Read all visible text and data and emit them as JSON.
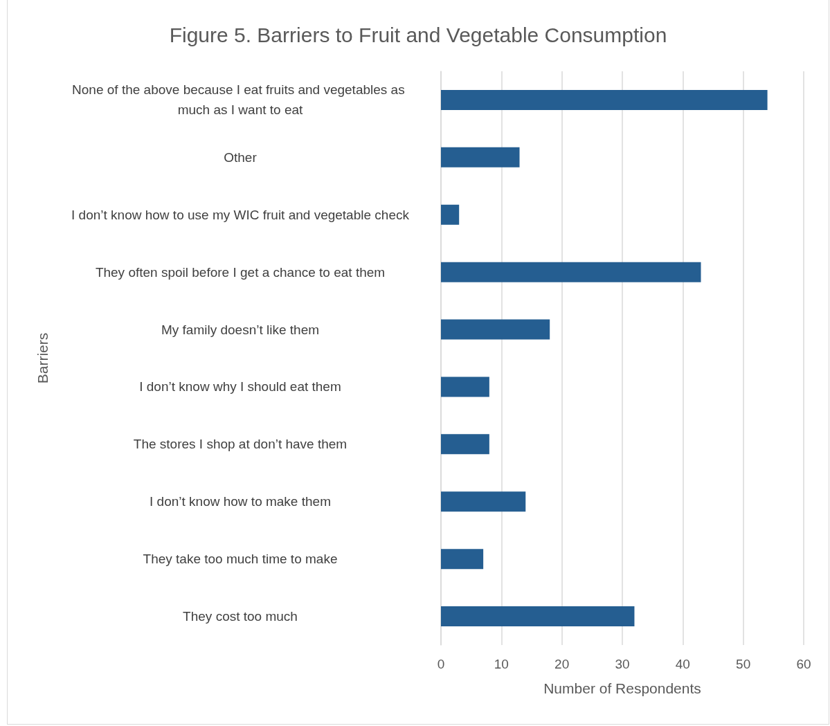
{
  "chart_data": {
    "type": "bar",
    "orientation": "horizontal",
    "title": "Figure 5. Barriers to Fruit and Vegetable Consumption",
    "xlabel": "Number of Respondents",
    "ylabel": "Barriers",
    "categories": [
      "None of the above because I eat fruits and vegetables as much as I want to eat",
      "Other",
      "I don’t know how to use my WIC fruit and vegetable check",
      "They often spoil before I get a chance to eat them",
      "My family doesn’t like them",
      "I don’t know why I should eat them",
      "The stores I shop at don’t have them",
      "I don’t know how to make them",
      "They take too much time to make",
      "They cost too much"
    ],
    "values": [
      54,
      13,
      3,
      43,
      18,
      8,
      8,
      14,
      7,
      32
    ],
    "color": "#255e91",
    "xlim": [
      0,
      60
    ],
    "xticks": [
      0,
      10,
      20,
      30,
      40,
      50,
      60
    ],
    "grid": "x"
  }
}
